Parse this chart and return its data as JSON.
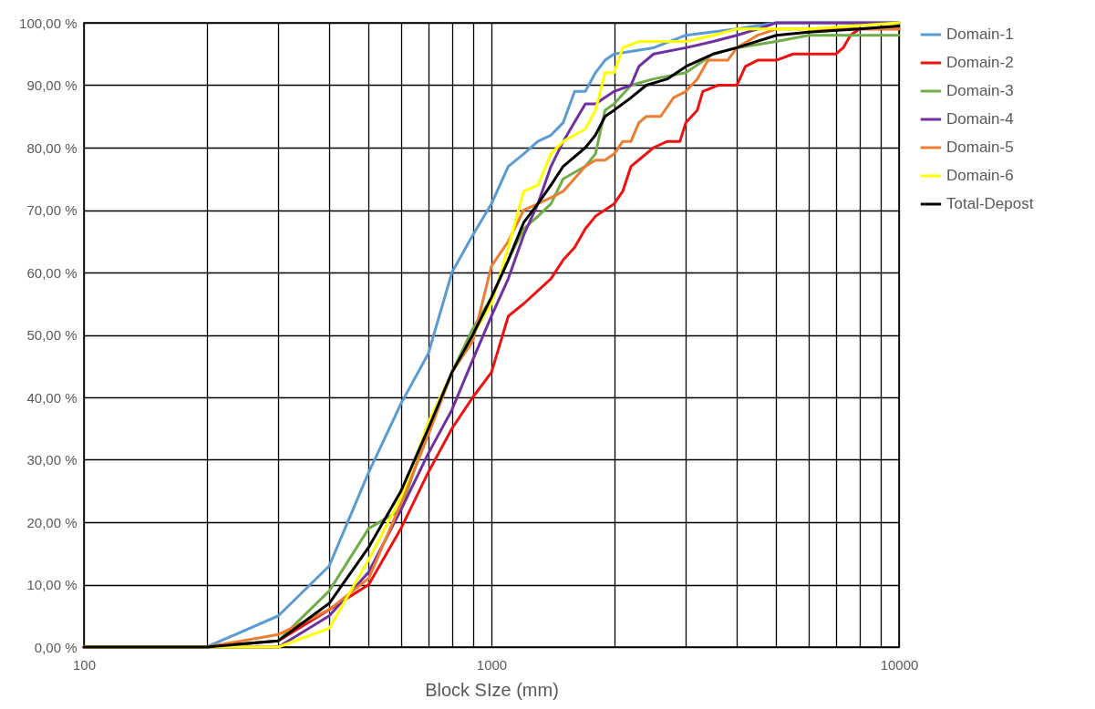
{
  "chart_data": {
    "type": "line",
    "xlabel": "Block SIze (mm)",
    "log": "x",
    "grid": true,
    "legend": "right",
    "marker": "none",
    "line_style": "solid",
    "xlim": [
      100,
      10000
    ],
    "xticks": [
      100,
      {
        "value": 200,
        "label": null
      },
      {
        "value": 300,
        "label": null
      },
      {
        "value": 400,
        "label": null
      },
      {
        "value": 500,
        "label": null
      },
      {
        "value": 600,
        "label": null
      },
      {
        "value": 700,
        "label": null
      },
      {
        "value": 800,
        "label": null
      },
      {
        "value": 900,
        "label": null
      },
      1000,
      {
        "value": 2000,
        "label": null
      },
      {
        "value": 3000,
        "label": null
      },
      {
        "value": 4000,
        "label": null
      },
      {
        "value": 5000,
        "label": null
      },
      {
        "value": 6000,
        "label": null
      },
      {
        "value": 7000,
        "label": null
      },
      {
        "value": 8000,
        "label": null
      },
      {
        "value": 9000,
        "label": null
      },
      10000
    ],
    "ylim": [
      0,
      100
    ],
    "yticks": [
      {
        "value": 0,
        "label": "0,00 %"
      },
      {
        "value": 10,
        "label": "10,00 %"
      },
      {
        "value": 20,
        "label": "20,00 %"
      },
      {
        "value": 30,
        "label": "30,00 %"
      },
      {
        "value": 40,
        "label": "40,00 %"
      },
      {
        "value": 50,
        "label": "50,00 %"
      },
      {
        "value": 60,
        "label": "60,00 %"
      },
      {
        "value": 70,
        "label": "70,00 %"
      },
      {
        "value": 80,
        "label": "80,00 %"
      },
      {
        "value": 90,
        "label": "90,00 %"
      },
      {
        "value": 100,
        "label": "100,00 %"
      }
    ],
    "series": [
      {
        "name": "Domain-1",
        "color": "#5b9bd5",
        "x": [
          100,
          200,
          300,
          400,
          500,
          600,
          700,
          800,
          900,
          1000,
          1100,
          1200,
          1300,
          1400,
          1500,
          1600,
          1700,
          1800,
          1900,
          2000,
          2500,
          3000,
          4000,
          5000,
          10000
        ],
        "values": [
          0,
          0,
          5,
          13,
          28,
          39,
          47,
          60,
          66,
          71,
          77,
          79,
          81,
          82,
          84,
          89,
          89,
          92,
          94,
          95,
          96,
          98,
          99,
          100,
          100
        ]
      },
      {
        "name": "Domain-2",
        "color": "#ee1111",
        "x": [
          100,
          200,
          300,
          400,
          500,
          600,
          700,
          800,
          900,
          1000,
          1100,
          1200,
          1400,
          1500,
          1600,
          1700,
          1800,
          2000,
          2100,
          2200,
          2500,
          2700,
          2900,
          3000,
          3200,
          3300,
          3600,
          4000,
          4200,
          4500,
          5000,
          5500,
          7000,
          7300,
          7600,
          8000,
          10000
        ],
        "values": [
          0,
          0,
          1,
          6,
          10,
          19,
          28,
          35,
          40,
          44,
          53,
          55,
          59,
          62,
          64,
          67,
          69,
          71,
          73,
          77,
          80,
          81,
          81,
          84,
          86,
          89,
          90,
          90,
          93,
          94,
          94,
          95,
          95,
          96,
          98,
          99,
          99
        ]
      },
      {
        "name": "Domain-3",
        "color": "#70ad47",
        "x": [
          100,
          200,
          300,
          400,
          500,
          600,
          700,
          800,
          900,
          1000,
          1100,
          1200,
          1300,
          1400,
          1500,
          1700,
          1800,
          1900,
          2000,
          2200,
          2500,
          3000,
          3500,
          4000,
          5000,
          6000,
          10000
        ],
        "values": [
          0,
          0,
          1,
          9,
          19,
          22,
          35,
          44,
          51,
          56,
          62,
          67,
          69,
          71,
          75,
          77,
          79,
          86,
          87,
          90,
          91,
          92,
          95,
          96,
          97,
          98,
          98
        ]
      },
      {
        "name": "Domain-4",
        "color": "#7030a0",
        "x": [
          100,
          200,
          300,
          400,
          500,
          600,
          700,
          800,
          900,
          1000,
          1100,
          1200,
          1300,
          1400,
          1500,
          1700,
          1800,
          2000,
          2200,
          2300,
          2500,
          3000,
          3500,
          4000,
          4500,
          5000,
          10000
        ],
        "values": [
          0,
          0,
          0,
          5,
          12,
          22,
          31,
          38,
          46,
          53,
          59,
          66,
          71,
          77,
          81,
          87,
          87,
          89,
          90,
          93,
          95,
          96,
          97,
          98,
          99,
          100,
          100
        ]
      },
      {
        "name": "Domain-5",
        "color": "#ed7d31",
        "x": [
          100,
          200,
          300,
          400,
          500,
          600,
          700,
          800,
          900,
          1000,
          1100,
          1200,
          1400,
          1500,
          1700,
          1800,
          1900,
          2000,
          2100,
          2200,
          2300,
          2400,
          2600,
          2800,
          3000,
          3200,
          3400,
          3800,
          4000,
          4500,
          5000,
          10000
        ],
        "values": [
          0,
          0,
          2,
          6,
          11,
          23,
          34,
          44,
          49,
          61,
          65,
          70,
          72,
          73,
          77,
          78,
          78,
          79,
          81,
          81,
          84,
          85,
          85,
          88,
          89,
          91,
          94,
          94,
          96,
          98,
          99,
          99
        ]
      },
      {
        "name": "Domain-6",
        "color": "#ffff00",
        "x": [
          100,
          200,
          300,
          400,
          500,
          600,
          700,
          800,
          900,
          1000,
          1100,
          1200,
          1300,
          1400,
          1500,
          1700,
          1800,
          1900,
          2000,
          2100,
          2300,
          3000,
          3500,
          4000,
          6000,
          10000
        ],
        "values": [
          0,
          0,
          0,
          3,
          14,
          24,
          36,
          44,
          50,
          55,
          64,
          73,
          74,
          79,
          81,
          83,
          86,
          92,
          92,
          96,
          97,
          97,
          98,
          99,
          99,
          100
        ]
      },
      {
        "name": "Total-Depost",
        "color": "#000000",
        "x": [
          100,
          200,
          300,
          400,
          500,
          600,
          700,
          800,
          900,
          1000,
          1100,
          1200,
          1300,
          1400,
          1500,
          1700,
          1800,
          1900,
          2000,
          2200,
          2400,
          2700,
          3000,
          3500,
          4000,
          5000,
          6000,
          8000,
          10000
        ],
        "values": [
          0,
          0,
          1,
          7,
          16,
          25,
          35,
          44,
          50,
          56,
          62,
          68,
          71,
          74,
          77,
          80,
          82,
          85,
          86,
          88,
          90,
          91,
          93,
          95,
          96,
          98,
          98.5,
          99,
          99.5
        ]
      }
    ]
  }
}
